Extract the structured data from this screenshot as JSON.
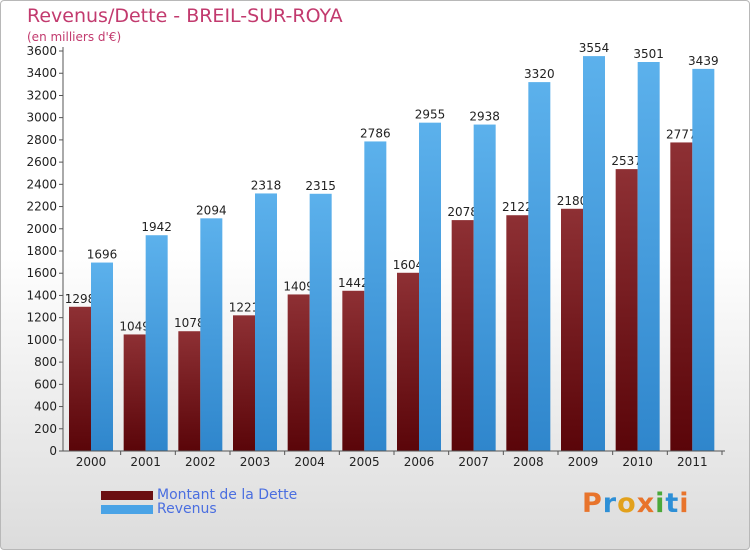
{
  "header": {
    "title": "Revenus/Dette - BREIL-SUR-ROYA",
    "subtitle": "(en milliers d'€)"
  },
  "legend": [
    {
      "label": "Montant de la Dette",
      "color": "#6b0f12"
    },
    {
      "label": "Revenus",
      "color": "#4aa3e6"
    }
  ],
  "logo": {
    "text": "Proxiti",
    "colors": [
      "#e8742c",
      "#2d8fd6",
      "#e2a11c",
      "#e8742c",
      "#4aa83a",
      "#2d8fd6",
      "#e8742c"
    ]
  },
  "chart_data": {
    "type": "bar",
    "title": "Revenus/Dette - BREIL-SUR-ROYA",
    "subtitle": "(en milliers d'€)",
    "categories": [
      "2000",
      "2001",
      "2002",
      "2003",
      "2004",
      "2005",
      "2006",
      "2007",
      "2008",
      "2009",
      "2010",
      "2011"
    ],
    "series": [
      {
        "name": "Montant de la Dette",
        "color": "#6b0f12",
        "values": [
          1298,
          1049,
          1078,
          1221,
          1409,
          1442,
          1604,
          2078,
          2122,
          2180,
          2537,
          2777
        ],
        "labels": [
          "1298",
          "1049",
          "1078",
          "1221",
          "1409",
          "1442",
          "1604",
          "2078",
          "2122",
          "2180",
          "2537",
          "2777"
        ]
      },
      {
        "name": "Revenus",
        "color": "#4aa3e6",
        "values": [
          1696,
          1942,
          2094,
          2318,
          2315,
          2786,
          2955,
          2938,
          3320,
          3554,
          3501,
          3439
        ],
        "labels": [
          "1696",
          "1942",
          "2094",
          "2318",
          "2315",
          "2786",
          "2955",
          "2938",
          "3320",
          "3554",
          "3501",
          "3439"
        ]
      }
    ],
    "yticks": [
      0,
      200,
      400,
      600,
      800,
      1000,
      1200,
      1400,
      1600,
      1800,
      2000,
      2200,
      2400,
      2600,
      2800,
      3000,
      3200,
      3400,
      3600
    ],
    "ylim": [
      0,
      3600
    ],
    "grid": false,
    "legend_position": "bottom-left"
  }
}
